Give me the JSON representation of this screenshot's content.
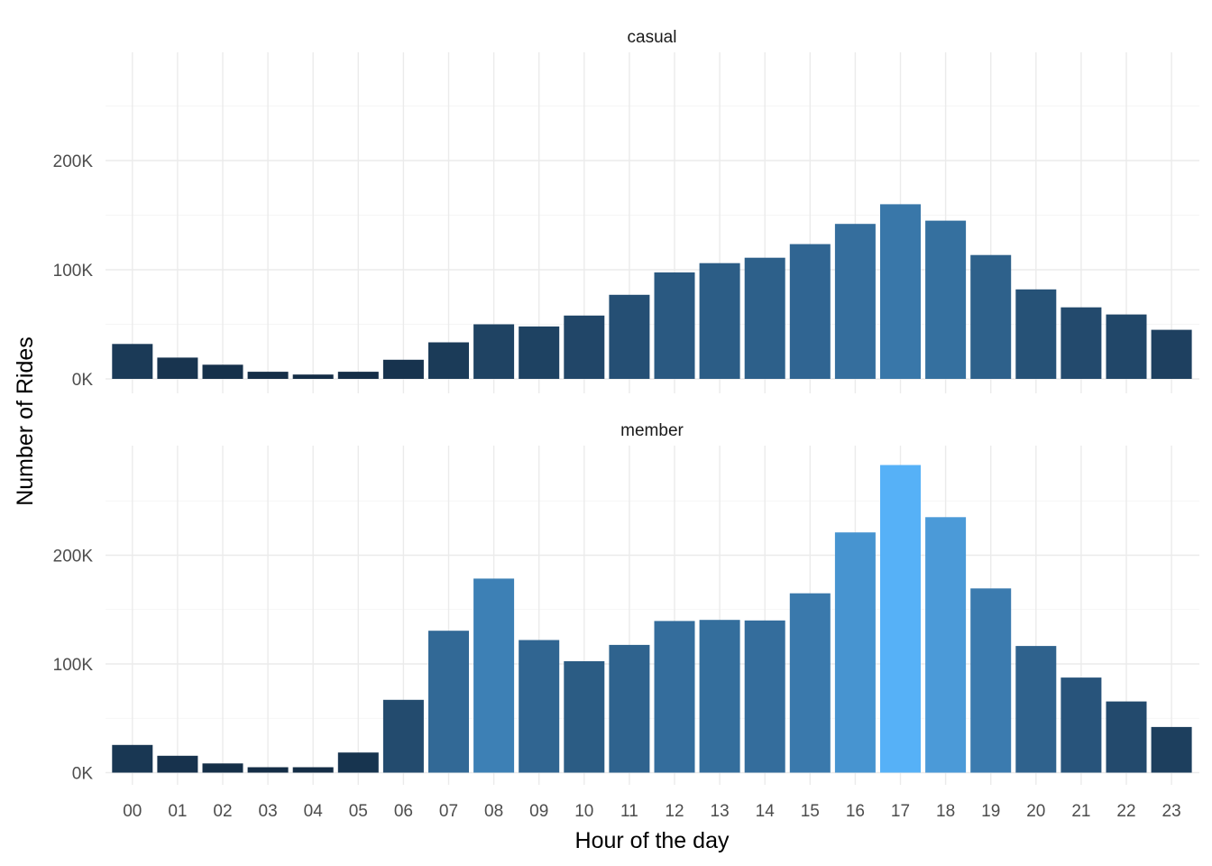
{
  "chart_data": {
    "type": "bar",
    "xlabel": "Hour of the day",
    "ylabel": "Number of Rides",
    "categories": [
      "00",
      "01",
      "02",
      "03",
      "04",
      "05",
      "06",
      "07",
      "08",
      "09",
      "10",
      "11",
      "12",
      "13",
      "14",
      "15",
      "16",
      "17",
      "18",
      "19",
      "20",
      "21",
      "22",
      "23"
    ],
    "ylim": [
      0,
      295000
    ],
    "y_ticks": [
      0,
      100000,
      200000
    ],
    "y_tick_labels": [
      "0K",
      "100K",
      "200K"
    ],
    "grid": true,
    "fill_scale": {
      "low": "#132b43",
      "high": "#56b1f7",
      "min": 0,
      "max": 283000
    },
    "facets": [
      {
        "label": "casual",
        "values": [
          32000,
          19500,
          13000,
          6500,
          4000,
          6500,
          17500,
          33500,
          50000,
          48000,
          58000,
          77000,
          97500,
          106000,
          111000,
          123500,
          142000,
          160000,
          145000,
          113500,
          82000,
          65500,
          59000,
          45000
        ]
      },
      {
        "label": "member",
        "values": [
          25500,
          15500,
          8500,
          5000,
          5000,
          18500,
          67000,
          130500,
          178500,
          122000,
          102500,
          117500,
          139500,
          140500,
          140000,
          165000,
          221000,
          283000,
          235000,
          169500,
          116500,
          87500,
          65500,
          42000
        ]
      }
    ]
  }
}
